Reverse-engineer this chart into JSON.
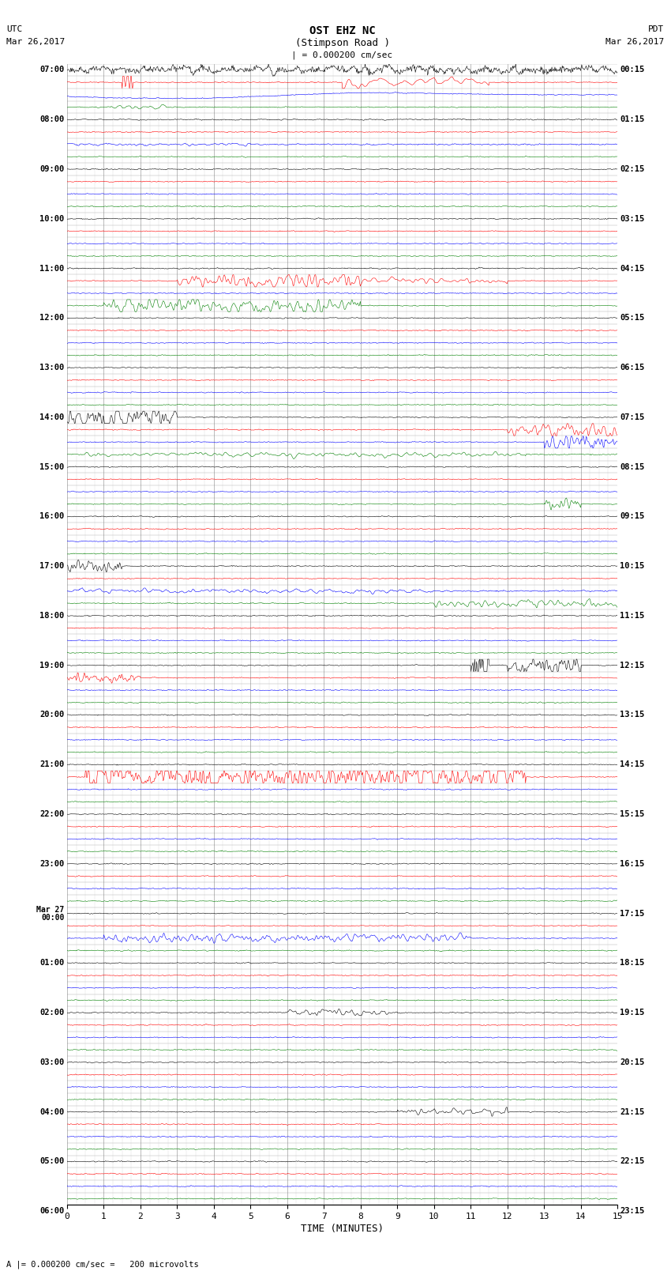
{
  "title_line1": "OST EHZ NC",
  "title_line2": "(Stimpson Road )",
  "scale_label": "| = 0.000200 cm/sec",
  "bottom_label": "A |= 0.000200 cm/sec =   200 microvolts",
  "xlabel": "TIME (MINUTES)",
  "utc_label": "UTC",
  "utc_date": "Mar 26,2017",
  "pdt_label": "PDT",
  "pdt_date": "Mar 26,2017",
  "n_rows": 92,
  "n_cols_minutes": 15,
  "colors_cycle": [
    "black",
    "red",
    "blue",
    "green"
  ],
  "bg_color": "white",
  "grid_color": "#888888",
  "grid_minor_color": "#bbbbbb",
  "figsize": [
    8.5,
    16.13
  ],
  "dpi": 100,
  "xlim": [
    0,
    15
  ],
  "xticks": [
    0,
    1,
    2,
    3,
    4,
    5,
    6,
    7,
    8,
    9,
    10,
    11,
    12,
    13,
    14,
    15
  ],
  "left_hour_labels": [
    "07:00",
    "08:00",
    "09:00",
    "10:00",
    "11:00",
    "12:00",
    "13:00",
    "14:00",
    "15:00",
    "16:00",
    "17:00",
    "18:00",
    "19:00",
    "20:00",
    "21:00",
    "22:00",
    "23:00",
    "00:00",
    "01:00",
    "02:00",
    "03:00",
    "04:00",
    "05:00",
    "06:00"
  ],
  "right_hour_labels": [
    "00:15",
    "01:15",
    "02:15",
    "03:15",
    "04:15",
    "05:15",
    "06:15",
    "07:15",
    "08:15",
    "09:15",
    "10:15",
    "11:15",
    "12:15",
    "13:15",
    "14:15",
    "15:15",
    "16:15",
    "17:15",
    "18:15",
    "19:15",
    "20:15",
    "21:15",
    "22:15",
    "23:15"
  ],
  "mar27_row": 68
}
